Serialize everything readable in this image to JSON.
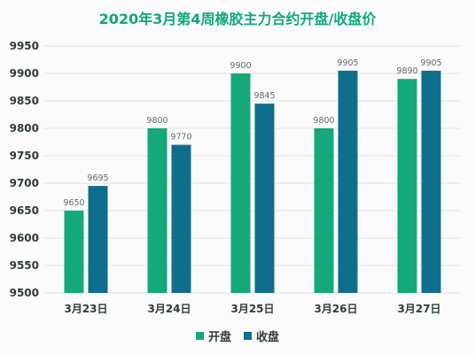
{
  "chart_data": {
    "type": "bar",
    "title": "2020年3月第4周橡胶主力合约开盘/收盘价",
    "categories": [
      "3月23日",
      "3月24日",
      "3月25日",
      "3月26日",
      "3月27日"
    ],
    "series": [
      {
        "name": "开盘",
        "color": "#14a87a",
        "values": [
          9650,
          9800,
          9900,
          9800,
          9890
        ]
      },
      {
        "name": "收盘",
        "color": "#0f6e8c",
        "values": [
          9695,
          9770,
          9845,
          9905,
          9905
        ]
      }
    ],
    "ylim": [
      9500,
      9950
    ],
    "yticks": [
      9500,
      9550,
      9600,
      9650,
      9700,
      9750,
      9800,
      9850,
      9900,
      9950
    ],
    "xlabel": "",
    "ylabel": "",
    "grid": true,
    "legend_position": "bottom"
  }
}
